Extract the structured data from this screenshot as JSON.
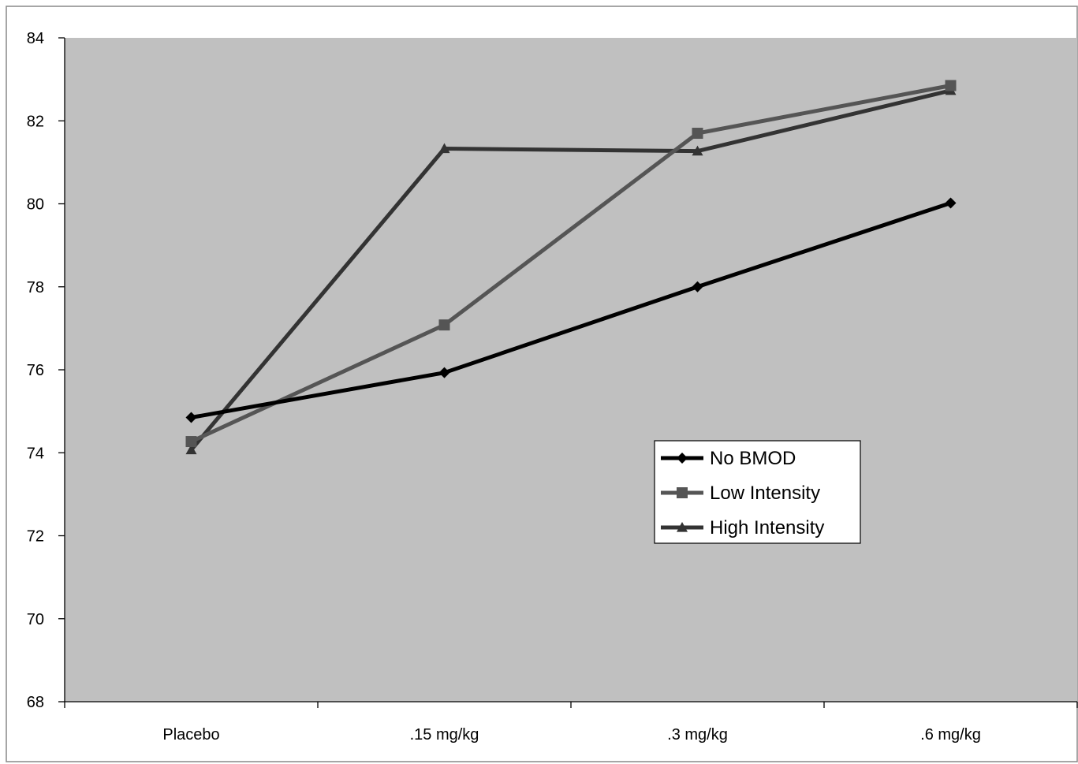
{
  "chart_data": {
    "type": "line",
    "title": "",
    "xlabel": "",
    "ylabel": "",
    "categories": [
      "Placebo",
      ".15 mg/kg",
      ".3 mg/kg",
      ".6 mg/kg"
    ],
    "ylim": [
      68,
      84
    ],
    "yticks": [
      68,
      70,
      72,
      74,
      76,
      78,
      80,
      82,
      84
    ],
    "ytick_labels": [
      "68",
      "70",
      "72",
      "74",
      "76",
      "78",
      "80",
      "82",
      "84"
    ],
    "grid": false,
    "legend_position": "center-right",
    "plot_background": "#c0c0c0",
    "series": [
      {
        "name": "No BMOD",
        "values": [
          74.85,
          75.93,
          78.0,
          80.02
        ],
        "color": "#000000",
        "marker": "diamond"
      },
      {
        "name": "Low Intensity",
        "values": [
          74.27,
          77.08,
          81.7,
          82.85
        ],
        "color": "#555555",
        "marker": "square"
      },
      {
        "name": "High Intensity",
        "values": [
          74.07,
          81.33,
          81.27,
          82.73
        ],
        "color": "#333333",
        "marker": "triangle"
      }
    ]
  }
}
